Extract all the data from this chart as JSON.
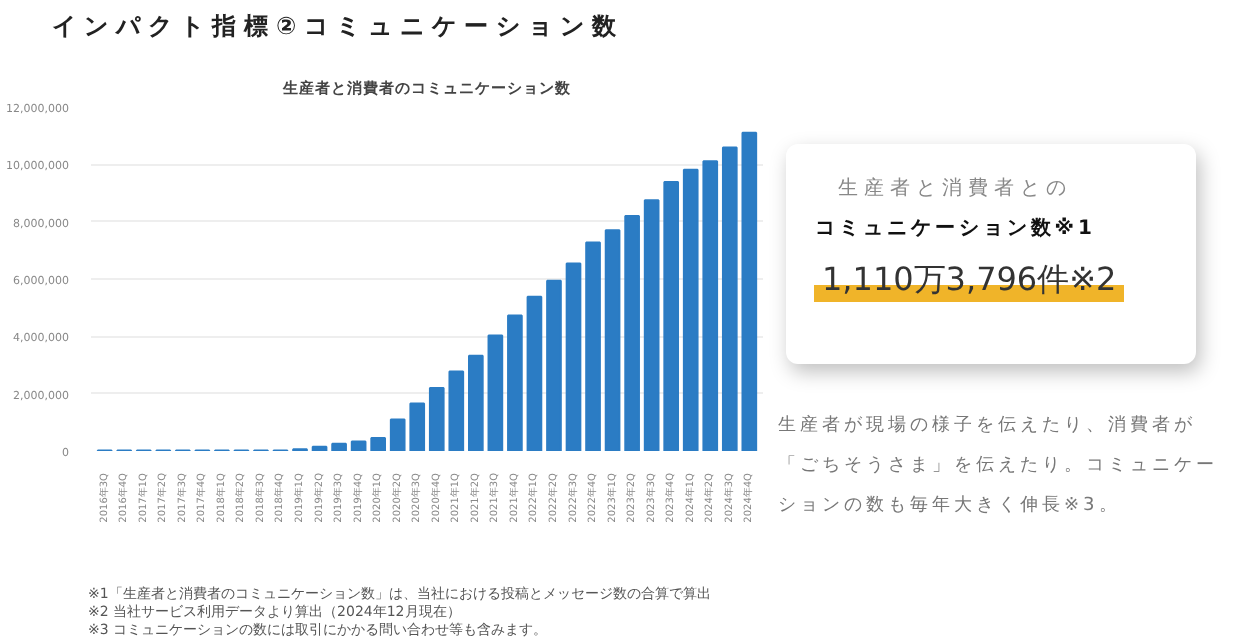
{
  "chart_data": {
    "type": "bar",
    "title": "インパクト指標②コミュニケーション数",
    "subtitle": "生産者と消費者のコミュニケーション数",
    "categories": [
      "2016年3Q",
      "2016年4Q",
      "2017年1Q",
      "2017年2Q",
      "2017年3Q",
      "2017年4Q",
      "2018年1Q",
      "2018年2Q",
      "2018年3Q",
      "2018年4Q",
      "2019年1Q",
      "2019年2Q",
      "2019年3Q",
      "2019年4Q",
      "2020年1Q",
      "2020年2Q",
      "2020年3Q",
      "2020年4Q",
      "2021年1Q",
      "2021年2Q",
      "2021年3Q",
      "2021年4Q",
      "2022年1Q",
      "2022年2Q",
      "2022年3Q",
      "2022年4Q",
      "2023年1Q",
      "2023年2Q",
      "2023年3Q",
      "2023年4Q",
      "2024年1Q",
      "2024年2Q",
      "2024年3Q",
      "2024年4Q"
    ],
    "values": [
      20000,
      20000,
      20000,
      20000,
      20000,
      20000,
      20000,
      20000,
      20000,
      20000,
      60000,
      150000,
      250000,
      330000,
      450000,
      1100000,
      1660000,
      2200000,
      2770000,
      3320000,
      4030000,
      4730000,
      5380000,
      5940000,
      6540000,
      7270000,
      7700000,
      8200000,
      8750000,
      9380000,
      9810000,
      10110000,
      10590000,
      11100000
    ],
    "color": "#2b7cc4",
    "ylim": [
      0,
      12000000
    ],
    "yticks": [
      {
        "value": 0,
        "label": "0"
      },
      {
        "value": 2000000,
        "label": "2,000,000"
      },
      {
        "value": 4000000,
        "label": "4,000,000"
      },
      {
        "value": 6000000,
        "label": "6,000,000"
      },
      {
        "value": 8000000,
        "label": "8,000,000"
      },
      {
        "value": 10000000,
        "label": "10,000,000"
      },
      {
        "value": 12000000,
        "label": "12,000,000"
      }
    ],
    "grid": "y",
    "annotations": [
      "生産者と消費者との",
      "コミュニケーション数※1",
      "1,110万3,796件※2",
      "生産者が現場の様子を伝えたり、消費者が「ごちそうさま」を伝えたり。コミュニケーションの数も毎年大きく伸長※3。",
      "※1「生産者と消費者のコミュニケーション数」は、当社における投稿とメッセージ数の合算で算出",
      "※2 当社サービス利用データより算出（2024年12月現在）",
      "※3 コミュニケーションの数には取引にかかる問い合わせ等も含みます。"
    ]
  }
}
